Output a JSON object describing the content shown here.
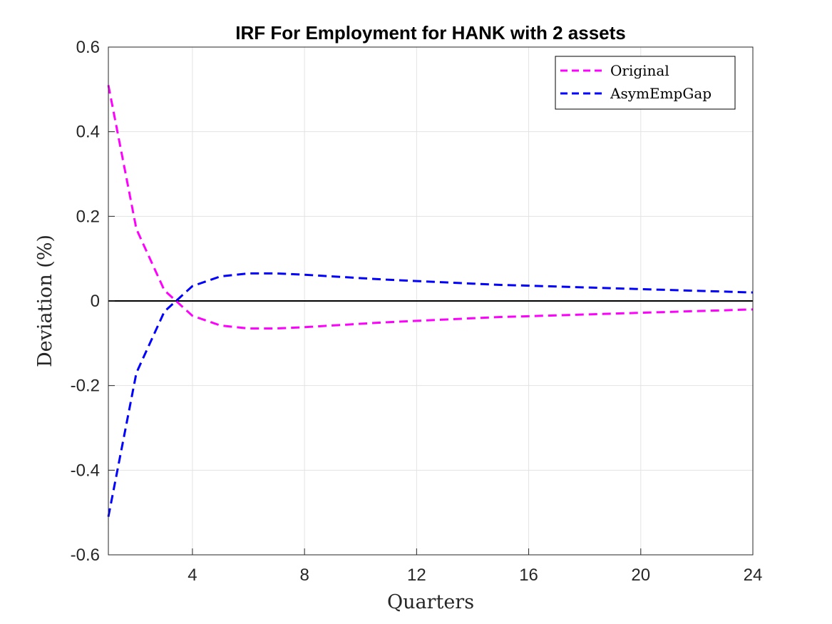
{
  "chart_data": {
    "type": "line",
    "title": "IRF For Employment for HANK with 2 assets",
    "xlabel": "Quarters",
    "ylabel": "Deviation (%)",
    "xlim": [
      1,
      24
    ],
    "ylim": [
      -0.6,
      0.6
    ],
    "x_ticks": [
      4,
      8,
      12,
      16,
      20,
      24
    ],
    "y_ticks": [
      -0.6,
      -0.4,
      -0.2,
      0,
      0.2,
      0.4,
      0.6
    ],
    "grid": true,
    "legend_position": "top-right",
    "zero_line": true,
    "x": [
      1,
      2,
      3,
      4,
      5,
      6,
      7,
      8,
      9,
      10,
      11,
      12,
      13,
      14,
      15,
      16,
      17,
      18,
      19,
      20,
      21,
      22,
      23,
      24
    ],
    "series": [
      {
        "name": "Original",
        "color": "#ff00ff",
        "line_style": "dashed",
        "values": [
          0.51,
          0.17,
          0.025,
          -0.035,
          -0.058,
          -0.065,
          -0.065,
          -0.062,
          -0.058,
          -0.054,
          -0.05,
          -0.047,
          -0.044,
          -0.041,
          -0.038,
          -0.036,
          -0.034,
          -0.032,
          -0.03,
          -0.028,
          -0.026,
          -0.024,
          -0.022,
          -0.02
        ]
      },
      {
        "name": "AsymEmpGap",
        "color": "#0000ff",
        "line_style": "dashed",
        "values": [
          -0.51,
          -0.17,
          -0.025,
          0.035,
          0.058,
          0.065,
          0.065,
          0.062,
          0.058,
          0.054,
          0.05,
          0.047,
          0.044,
          0.041,
          0.038,
          0.036,
          0.034,
          0.032,
          0.03,
          0.028,
          0.026,
          0.024,
          0.022,
          0.02
        ]
      }
    ]
  }
}
